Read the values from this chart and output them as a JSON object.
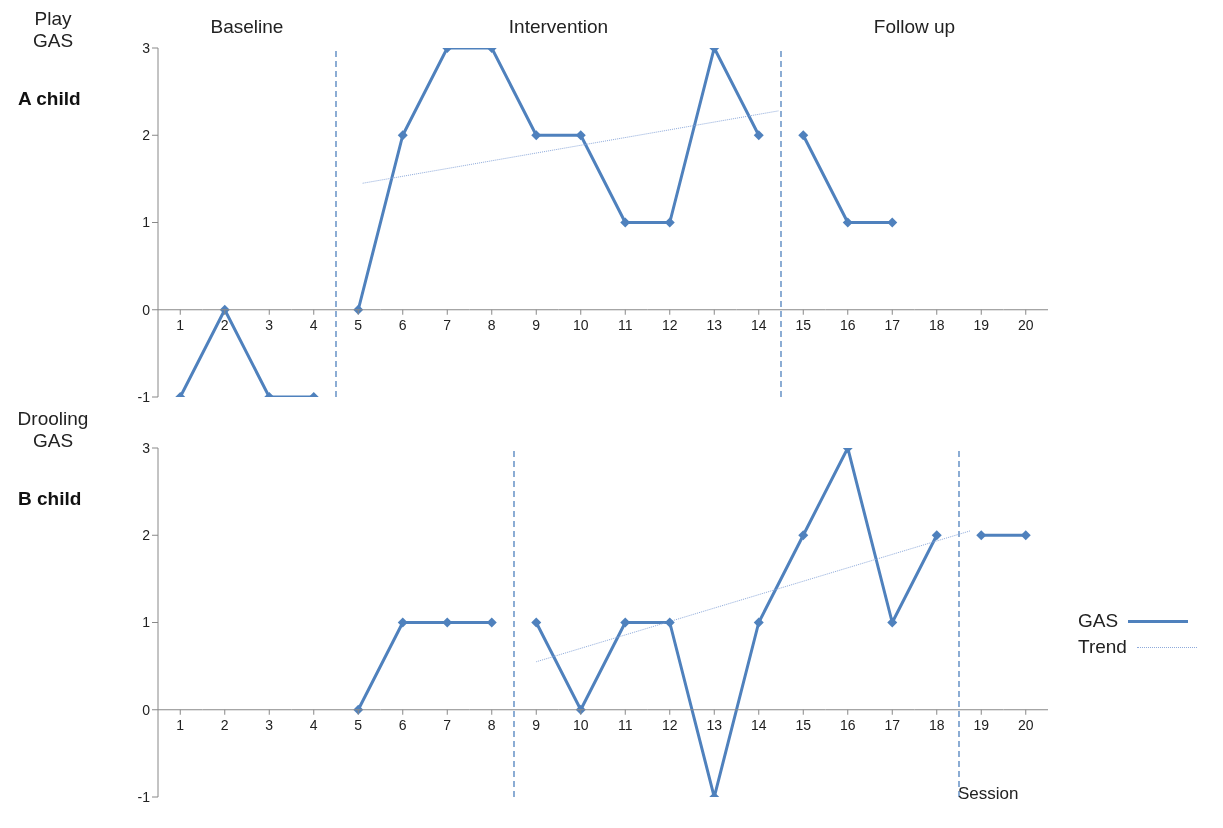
{
  "chart_data": [
    {
      "type": "line",
      "title": "A child",
      "ylabel": "Play GAS",
      "annotations": [
        "Baseline",
        "Intervention",
        "Follow up"
      ],
      "xlim": [
        0.5,
        20.5
      ],
      "xticks": [
        1,
        2,
        3,
        4,
        5,
        6,
        7,
        8,
        9,
        10,
        11,
        12,
        13,
        14,
        15,
        16,
        17,
        18,
        19,
        20
      ],
      "ylim": [
        -1,
        3
      ],
      "yticks": [
        -1,
        0,
        1,
        2,
        3
      ],
      "grid": false,
      "legend": false,
      "marker": "diamond",
      "line_style": "solid",
      "series": [
        {
          "color": "#4f81bd",
          "x": [
            1,
            2,
            3,
            4,
            4.5,
            5,
            6,
            7,
            8,
            9,
            10,
            11,
            12,
            13,
            14,
            14.5,
            15,
            16,
            17
          ],
          "values": [
            -1,
            0,
            -1,
            -1,
            null,
            0,
            2,
            3,
            3,
            2,
            2,
            1,
            1,
            3,
            2,
            null,
            2,
            1,
            1
          ]
        },
        {
          "type": "line",
          "color": "#8eaadb",
          "marker": "none",
          "line_style": "dotted",
          "x": [
            5.1,
            14.45
          ],
          "values": [
            1.45,
            2.28
          ]
        }
      ],
      "ref_lines": [
        {
          "axis": "x",
          "value": 4.5,
          "color": "#4f81bd",
          "line_style": "dashed"
        },
        {
          "axis": "x",
          "value": 14.5,
          "color": "#4f81bd",
          "line_style": "dashed"
        }
      ]
    },
    {
      "type": "line",
      "title": "B child",
      "ylabel": "Drooling GAS",
      "xlabel": "Session",
      "xlim": [
        0.5,
        20.5
      ],
      "xticks": [
        1,
        2,
        3,
        4,
        5,
        6,
        7,
        8,
        9,
        10,
        11,
        12,
        13,
        14,
        15,
        16,
        17,
        18,
        19,
        20
      ],
      "ylim": [
        -1,
        3
      ],
      "yticks": [
        -1,
        0,
        1,
        2,
        3
      ],
      "grid": false,
      "legend": "right",
      "marker": "diamond",
      "line_style": "solid",
      "series": [
        {
          "name": "GAS",
          "color": "#4f81bd",
          "x": [
            5,
            6,
            7,
            8,
            8.5,
            9,
            10,
            11,
            12,
            13,
            14,
            15,
            16,
            17,
            18,
            18.5,
            19,
            20
          ],
          "values": [
            0,
            1,
            1,
            1,
            null,
            1,
            0,
            1,
            1,
            -1,
            1,
            2,
            3,
            1,
            2,
            null,
            2,
            2
          ]
        },
        {
          "name": "Trend",
          "type": "line",
          "color": "#8eaadb",
          "marker": "none",
          "line_style": "dotted",
          "x": [
            9,
            18.75
          ],
          "values": [
            0.55,
            2.05
          ]
        }
      ],
      "ref_lines": [
        {
          "axis": "x",
          "value": 8.5,
          "color": "#4f81bd",
          "line_style": "dashed"
        },
        {
          "axis": "x",
          "value": 18.5,
          "color": "#4f81bd",
          "line_style": "dashed"
        }
      ]
    }
  ]
}
